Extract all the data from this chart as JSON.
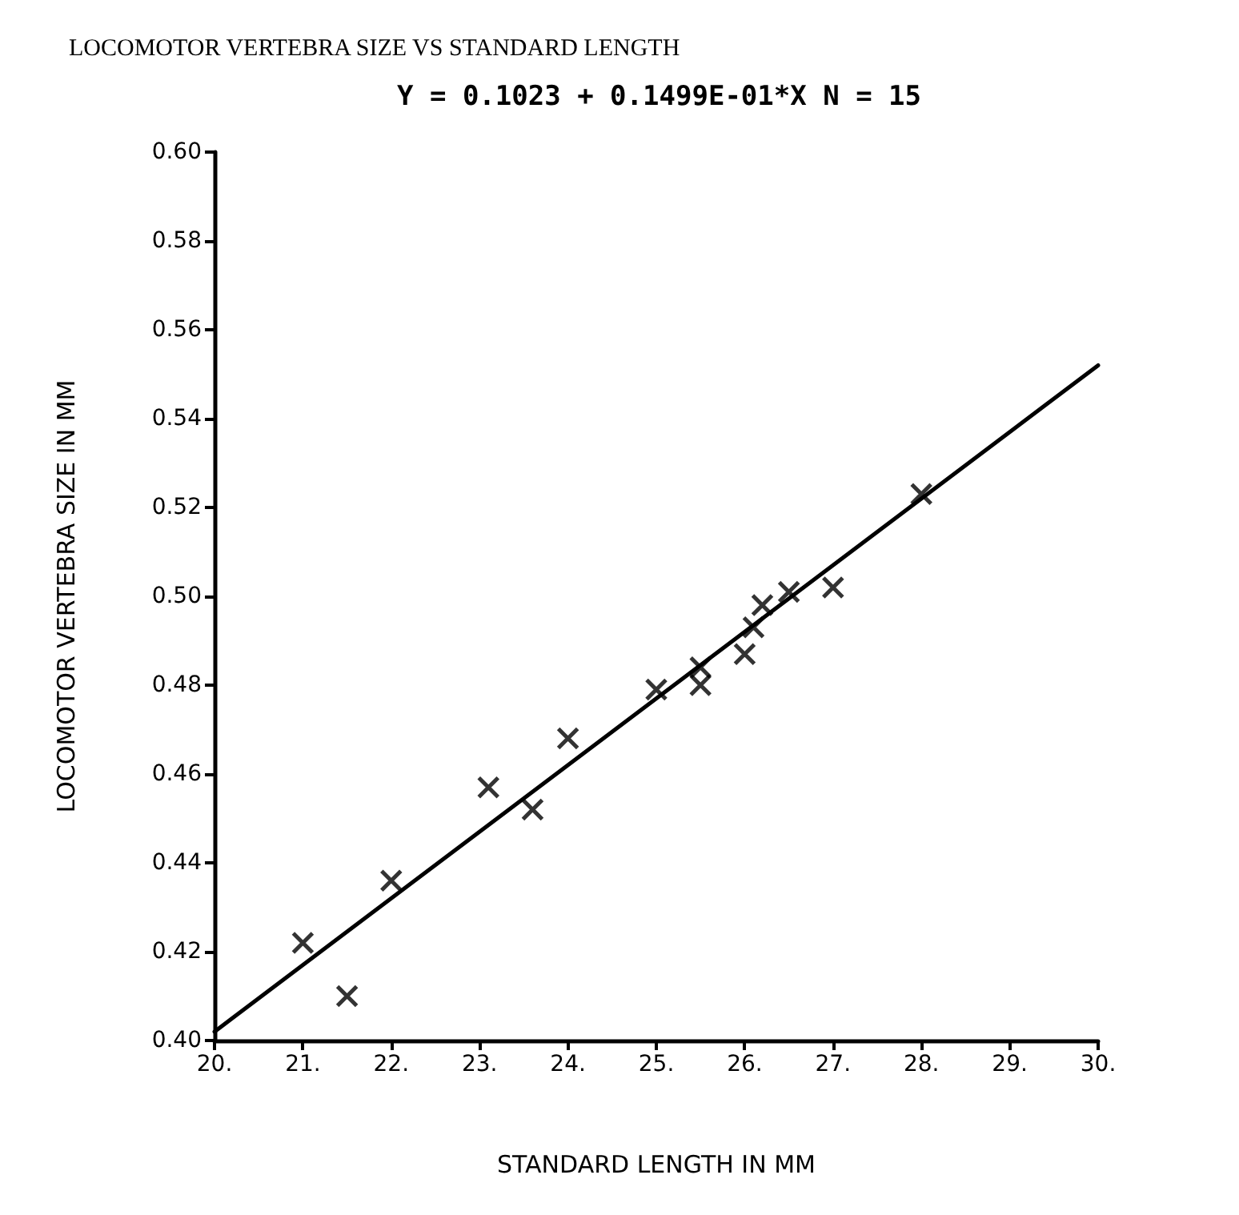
{
  "chart_data": {
    "type": "scatter",
    "title": "LOCOMOTOR VERTEBRA SIZE VS STANDARD LENGTH",
    "annotations": [
      "Y = 0.1023 + 0.1499E-01*X N = 15"
    ],
    "xlabel": "STANDARD LENGTH IN MM",
    "ylabel": "LOCOMOTOR VERTEBRA SIZE IN MM",
    "marker": "cross",
    "grid": false,
    "xlim": [
      20,
      30
    ],
    "ylim": [
      0.4,
      0.6
    ],
    "xticks": [
      {
        "value": 20,
        "label": "20."
      },
      {
        "value": 21,
        "label": "21."
      },
      {
        "value": 22,
        "label": "22."
      },
      {
        "value": 23,
        "label": "23."
      },
      {
        "value": 24,
        "label": "24."
      },
      {
        "value": 25,
        "label": "25."
      },
      {
        "value": 26,
        "label": "26."
      },
      {
        "value": 27,
        "label": "27."
      },
      {
        "value": 28,
        "label": "28."
      },
      {
        "value": 29,
        "label": "29."
      },
      {
        "value": 30,
        "label": "30."
      }
    ],
    "yticks": [
      {
        "value": 0.4,
        "label": "0.40"
      },
      {
        "value": 0.42,
        "label": "0.42"
      },
      {
        "value": 0.44,
        "label": "0.44"
      },
      {
        "value": 0.46,
        "label": "0.46"
      },
      {
        "value": 0.48,
        "label": "0.48"
      },
      {
        "value": 0.5,
        "label": "0.50"
      },
      {
        "value": 0.52,
        "label": "0.52"
      },
      {
        "value": 0.54,
        "label": "0.54"
      },
      {
        "value": 0.56,
        "label": "0.56"
      },
      {
        "value": 0.58,
        "label": "0.58"
      },
      {
        "value": 0.6,
        "label": "0.60"
      }
    ],
    "series": [
      {
        "color": "#000000",
        "x": [
          21,
          21.5,
          22,
          23.1,
          23.6,
          24,
          25,
          25.5,
          25.5,
          26,
          26.1,
          26.2,
          26.5,
          27,
          28
        ],
        "values": [
          0.422,
          0.41,
          0.436,
          0.457,
          0.452,
          0.468,
          0.479,
          0.484,
          0.48,
          0.487,
          0.493,
          0.498,
          0.501,
          0.502,
          0.523
        ]
      },
      {
        "type": "line",
        "color": "#000000",
        "marker": "none",
        "x": [
          20,
          30
        ],
        "values": [
          0.402,
          0.552
        ]
      }
    ]
  }
}
